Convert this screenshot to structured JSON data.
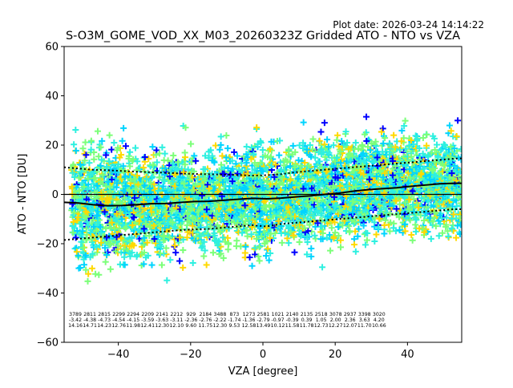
{
  "chart_data": {
    "type": "scatter",
    "plot_date": "Plot date: 2026-03-24 14:14:22",
    "title": "S-O3M_GOME_VOD_XX_M03_20260323Z Gridded ATO - NTO vs VZA",
    "xlabel": "VZA [degree]",
    "ylabel": "ATO - NTO [DU]",
    "xlim": [
      -55,
      55
    ],
    "ylim": [
      -60,
      60
    ],
    "xticks": [
      -40,
      -20,
      0,
      20,
      40
    ],
    "yticks": [
      -60,
      -40,
      -20,
      0,
      20,
      40,
      60
    ],
    "xtick_labels": [
      "−40",
      "−20",
      "0",
      "20",
      "40"
    ],
    "ytick_labels": [
      "−60",
      "−40",
      "−20",
      "0",
      "20",
      "40",
      "60"
    ],
    "marker": "+",
    "colors": [
      "#0000ff",
      "#00d4ff",
      "#2ef0e0",
      "#7cff79",
      "#ffd900"
    ],
    "bins": {
      "centers": [
        -51,
        -47,
        -43,
        -39,
        -35,
        -31,
        -27,
        -23,
        -19,
        -15,
        -11,
        -7,
        -3,
        1,
        5,
        9,
        13,
        17,
        21,
        25,
        29,
        33,
        37,
        41,
        45,
        49,
        53
      ],
      "counts": [
        "3789",
        "2811",
        "2815",
        "2299",
        "2294",
        "2209",
        "2141",
        "2212",
        "929",
        "2184",
        "3488",
        "873",
        "1273",
        "2581",
        "1021",
        "2140",
        "2135",
        "2518",
        "3078",
        "2937",
        "3398",
        "3020",
        "",
        "",
        "",
        "",
        ""
      ],
      "means": [
        "-3.42",
        "-4.38",
        "-4.73",
        "-4.54",
        "-4.15",
        "-3.59",
        "-3.63",
        "-3.11",
        "-2.36",
        "-2.76",
        "-2.22",
        "-1.74",
        "-1.36",
        "-2.79",
        "-0.97",
        "-0.39",
        "0.39",
        "1.05",
        "2.00",
        "2.36",
        "3.63",
        "4.20",
        "",
        "",
        "",
        "",
        ""
      ],
      "stds": [
        "14.16",
        "14.71",
        "14.23",
        "12.76",
        "11.98",
        "12.41",
        "12.30",
        "12.10",
        "9.60",
        "11.75",
        "12.30",
        "9.53",
        "12.58",
        "13.49",
        "10.12",
        "11.58",
        "11.78",
        "12.73",
        "12.27",
        "12.07",
        "11.70",
        "10.66",
        "",
        "",
        "",
        "",
        ""
      ]
    },
    "median": {
      "x": [
        -55,
        -51,
        -47,
        -43,
        -39,
        -35,
        -31,
        -27,
        -23,
        -19,
        -15,
        -11,
        -7,
        -3,
        1,
        5,
        9,
        13,
        17,
        21,
        25,
        29,
        33,
        37,
        41,
        45,
        49,
        53,
        55
      ],
      "y": [
        -3.2,
        -3.5,
        -4.2,
        -4.6,
        -4.5,
        -4.2,
        -3.8,
        -3.7,
        -3.3,
        -2.9,
        -2.8,
        -2.4,
        -2.0,
        -1.6,
        -1.8,
        -1.5,
        -1.0,
        -0.6,
        0.0,
        0.5,
        1.3,
        1.9,
        2.3,
        2.7,
        3.3,
        3.8,
        4.3,
        4.5,
        4.5
      ]
    },
    "upper_dotted": {
      "x": [
        -55,
        -51,
        -47,
        -43,
        -39,
        -35,
        -31,
        -27,
        -23,
        -19,
        -15,
        -11,
        -7,
        -3,
        1,
        5,
        9,
        13,
        17,
        21,
        25,
        29,
        33,
        37,
        41,
        45,
        49,
        53,
        55
      ],
      "y": [
        11.0,
        10.5,
        10.0,
        9.8,
        9.5,
        9.2,
        9.0,
        8.8,
        8.5,
        8.3,
        8.2,
        8.0,
        7.9,
        7.6,
        7.8,
        8.2,
        9.0,
        9.5,
        10.0,
        10.5,
        11.0,
        11.5,
        12.0,
        12.5,
        13.0,
        13.5,
        14.0,
        14.5,
        14.6
      ]
    },
    "lower_dotted": {
      "x": [
        -55,
        -51,
        -47,
        -43,
        -39,
        -35,
        -31,
        -27,
        -23,
        -19,
        -15,
        -11,
        -7,
        -3,
        1,
        5,
        9,
        13,
        17,
        21,
        25,
        29,
        33,
        37,
        41,
        45,
        49,
        53,
        55
      ],
      "y": [
        -18.5,
        -18.0,
        -17.5,
        -17.0,
        -16.5,
        -16.0,
        -15.5,
        -15.0,
        -14.5,
        -14.2,
        -14.0,
        -13.5,
        -13.0,
        -12.5,
        -13.0,
        -12.0,
        -11.5,
        -11.0,
        -10.5,
        -10.0,
        -9.5,
        -9.0,
        -8.5,
        -8.0,
        -7.5,
        -7.0,
        -6.5,
        -6.0,
        -6.0
      ]
    }
  }
}
